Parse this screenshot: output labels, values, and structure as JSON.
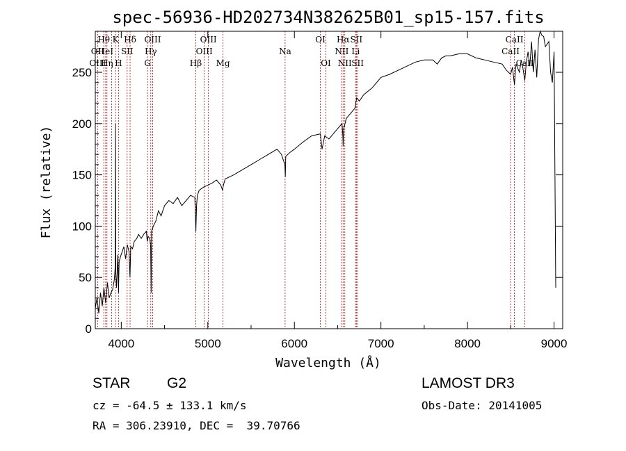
{
  "chart_data": {
    "type": "line",
    "title": "spec-56936-HD202734N382625B01_sp15-157.fits",
    "xlabel": "Wavelength (Å)",
    "ylabel": "Flux (relative)",
    "xlim": [
      3700,
      9100
    ],
    "ylim": [
      0,
      290
    ],
    "x_ticks": [
      4000,
      5000,
      6000,
      7000,
      8000,
      9000
    ],
    "y_ticks": [
      0,
      50,
      100,
      150,
      200,
      250
    ],
    "series": [
      {
        "name": "flux",
        "x": [
          3700,
          3720,
          3740,
          3760,
          3780,
          3800,
          3820,
          3840,
          3860,
          3880,
          3900,
          3920,
          3930,
          3933,
          3936,
          3945,
          3960,
          3968,
          3975,
          3990,
          4010,
          4030,
          4050,
          4070,
          4090,
          4101,
          4110,
          4130,
          4150,
          4180,
          4200,
          4230,
          4260,
          4290,
          4300,
          4310,
          4330,
          4340,
          4345,
          4350,
          4370,
          4400,
          4430,
          4460,
          4500,
          4550,
          4600,
          4650,
          4700,
          4750,
          4800,
          4850,
          4862,
          4870,
          4880,
          4900,
          4950,
          5000,
          5050,
          5100,
          5150,
          5170,
          5180,
          5200,
          5300,
          5400,
          5500,
          5600,
          5700,
          5800,
          5850,
          5890,
          5895,
          5900,
          5950,
          6000,
          6100,
          6200,
          6300,
          6320,
          6350,
          6400,
          6450,
          6500,
          6550,
          6560,
          6563,
          6570,
          6600,
          6650,
          6700,
          6720,
          6750,
          6800,
          6900,
          7000,
          7100,
          7200,
          7300,
          7400,
          7500,
          7600,
          7650,
          7700,
          7750,
          7800,
          7900,
          8000,
          8100,
          8200,
          8300,
          8400,
          8450,
          8498,
          8520,
          8542,
          8560,
          8600,
          8620,
          8640,
          8662,
          8680,
          8700,
          8720,
          8740,
          8760,
          8780,
          8800,
          8820,
          8840,
          8860,
          8880,
          8900,
          8940,
          8960,
          8980,
          9000,
          9020
        ],
        "y": [
          20,
          30,
          15,
          35,
          22,
          40,
          25,
          45,
          30,
          35,
          38,
          48,
          60,
          200,
          55,
          40,
          72,
          35,
          65,
          70,
          75,
          80,
          68,
          82,
          75,
          50,
          80,
          78,
          85,
          88,
          92,
          88,
          92,
          95,
          85,
          90,
          88,
          80,
          35,
          95,
          100,
          105,
          115,
          110,
          120,
          125,
          122,
          128,
          120,
          125,
          130,
          128,
          95,
          120,
          130,
          135,
          138,
          140,
          142,
          145,
          140,
          135,
          140,
          146,
          150,
          155,
          160,
          165,
          170,
          175,
          170,
          160,
          148,
          168,
          172,
          175,
          182,
          188,
          190,
          175,
          188,
          185,
          190,
          195,
          200,
          188,
          178,
          195,
          205,
          210,
          215,
          225,
          222,
          228,
          235,
          245,
          248,
          252,
          256,
          260,
          262,
          262,
          258,
          264,
          266,
          266,
          268,
          268,
          264,
          262,
          260,
          258,
          252,
          248,
          255,
          238,
          258,
          250,
          262,
          254,
          242,
          260,
          270,
          256,
          280,
          250,
          272,
          245,
          282,
          290,
          286,
          285,
          275,
          280,
          250,
          240,
          270,
          40
        ]
      }
    ],
    "spectral_lines": [
      {
        "label": "Hθ",
        "x": 3798,
        "row": 1
      },
      {
        "label": "OII",
        "x": 3727,
        "row": 2
      },
      {
        "label": "HeI",
        "x": 3820,
        "row": 2
      },
      {
        "label": "OIII",
        "x": 3727,
        "row": 3
      },
      {
        "label": "Hη",
        "x": 3835,
        "row": 3
      },
      {
        "label": "K",
        "x": 3934,
        "row": 1
      },
      {
        "label": "SII",
        "x": 4068,
        "row": 2
      },
      {
        "label": "H",
        "x": 3968,
        "row": 3
      },
      {
        "label": "Hδ",
        "x": 4102,
        "row": 1
      },
      {
        "label": "OIII",
        "x": 4363,
        "row": 1
      },
      {
        "label": "Hγ",
        "x": 4341,
        "row": 2
      },
      {
        "label": "G",
        "x": 4304,
        "row": 3
      },
      {
        "label": "OIII",
        "x": 5007,
        "row": 1
      },
      {
        "label": "OIII",
        "x": 4959,
        "row": 2
      },
      {
        "label": "Hβ",
        "x": 4861,
        "row": 3
      },
      {
        "label": "Mg",
        "x": 5175,
        "row": 3
      },
      {
        "label": "Na",
        "x": 5893,
        "row": 2
      },
      {
        "label": "OI",
        "x": 6300,
        "row": 1
      },
      {
        "label": "OI",
        "x": 6364,
        "row": 3
      },
      {
        "label": "Hα",
        "x": 6563,
        "row": 1
      },
      {
        "label": "SII",
        "x": 6716,
        "row": 1
      },
      {
        "label": "NII",
        "x": 6548,
        "row": 2
      },
      {
        "label": "Li",
        "x": 6708,
        "row": 2
      },
      {
        "label": "NII",
        "x": 6583,
        "row": 3
      },
      {
        "label": "SII",
        "x": 6731,
        "row": 3
      },
      {
        "label": "CaII",
        "x": 8542,
        "row": 1
      },
      {
        "label": "CaII",
        "x": 8498,
        "row": 2
      },
      {
        "label": "CaII",
        "x": 8662,
        "row": 3
      }
    ],
    "line_markers": [
      3727,
      3798,
      3820,
      3835,
      3889,
      3934,
      3968,
      4068,
      4102,
      4304,
      4341,
      4363,
      4861,
      4959,
      5007,
      5175,
      5893,
      6300,
      6364,
      6548,
      6563,
      6583,
      6708,
      6716,
      6731,
      8498,
      8542,
      8662
    ]
  },
  "info": {
    "object_class": "STAR",
    "subclass": "G2",
    "survey": "LAMOST DR3",
    "cz": "cz = -64.5 ± 133.1 km/s",
    "obs_date": "Obs-Date: 20141005",
    "coords": "RA = 306.23910, DEC =  39.70766"
  },
  "colors": {
    "line_marker": "#cc0000",
    "spectrum": "#000000"
  }
}
